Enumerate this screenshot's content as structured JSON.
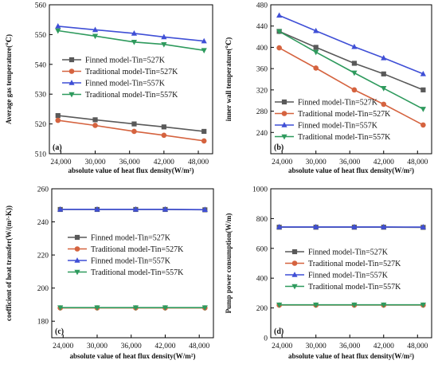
{
  "colors": {
    "finned_527": "#595959",
    "traditional_527": "#d5633f",
    "finned_557": "#3f4fd6",
    "traditional_557": "#2e9a5d",
    "axis": "#000000"
  },
  "chart_data": [
    {
      "type": "line",
      "panel_label": "(a)",
      "ylabel": "Average gas temperature(℃)",
      "xlabel": "absolute value of heat flux density(W/m²)",
      "x": [
        23500,
        30000,
        36800,
        42000,
        49000
      ],
      "xlim": [
        22000,
        50500
      ],
      "xticks": [
        24000,
        30000,
        36000,
        42000,
        48000
      ],
      "xtick_labels": [
        "24,000",
        "30,000",
        "36,000",
        "42,000",
        "48,000"
      ],
      "ylim": [
        510,
        560
      ],
      "yticks": [
        510,
        520,
        530,
        540,
        550,
        560
      ],
      "legend_position": "center-right",
      "series": [
        {
          "name": "Finned model-Tin=527K",
          "marker": "square",
          "color_key": "finned_527",
          "values": [
            522.8,
            521.4,
            520.0,
            519.0,
            517.5
          ]
        },
        {
          "name": "Traditional model-Tin=527K",
          "marker": "circle",
          "color_key": "traditional_527",
          "values": [
            521.2,
            519.5,
            517.5,
            516.2,
            514.3
          ]
        },
        {
          "name": "Finned model-Tin=557K",
          "marker": "triangle-up",
          "color_key": "finned_557",
          "values": [
            552.8,
            551.6,
            550.4,
            549.2,
            547.8
          ]
        },
        {
          "name": "Traditional model-Tin=557K",
          "marker": "triangle-down",
          "color_key": "traditional_557",
          "values": [
            551.3,
            549.5,
            547.5,
            546.7,
            544.7
          ]
        }
      ]
    },
    {
      "type": "line",
      "panel_label": "(b)",
      "ylabel": "inner wall temperature(℃)",
      "xlabel": "absolute value of heat flux density(W/m²)",
      "x": [
        23500,
        30000,
        36800,
        42000,
        49000
      ],
      "xlim": [
        22000,
        50500
      ],
      "xticks": [
        24000,
        30000,
        36000,
        42000,
        48000
      ],
      "xtick_labels": [
        "24,000",
        "30,000",
        "36,000",
        "42,000",
        "48,000"
      ],
      "ylim": [
        200,
        480
      ],
      "yticks": [
        240,
        280,
        320,
        360,
        400,
        440,
        480
      ],
      "legend_position": "bottom-left",
      "series": [
        {
          "name": "Finned model-Tin=527K",
          "marker": "square",
          "color_key": "finned_527",
          "values": [
            430,
            400,
            370,
            350,
            320
          ]
        },
        {
          "name": "Traditional model-Tin=527K",
          "marker": "circle",
          "color_key": "traditional_527",
          "values": [
            399,
            361,
            320,
            293,
            254
          ]
        },
        {
          "name": "Finned model-Tin=557K",
          "marker": "triangle-up",
          "color_key": "finned_557",
          "values": [
            460,
            431,
            401,
            380,
            350
          ]
        },
        {
          "name": "Traditional model-Tin=557K",
          "marker": "triangle-down",
          "color_key": "traditional_557",
          "values": [
            430,
            391,
            352,
            323,
            284
          ]
        }
      ]
    },
    {
      "type": "line",
      "panel_label": "(c)",
      "ylabel": "coefficient of heat transfer(W/(m²·K))",
      "xlabel": "absolute value of heat flux density(W/m²)",
      "x": [
        23500,
        30000,
        36800,
        42000,
        49000
      ],
      "xlim": [
        22000,
        50500
      ],
      "xticks": [
        24000,
        30000,
        36000,
        42000,
        48000
      ],
      "xtick_labels": [
        "24,000",
        "30,000",
        "36,000",
        "42,000",
        "48,000"
      ],
      "ylim": [
        170,
        260
      ],
      "yticks": [
        180,
        200,
        220,
        240,
        260
      ],
      "legend_position": "center-right",
      "series": [
        {
          "name": "Finned model-Tin=527K",
          "marker": "square",
          "color_key": "finned_527",
          "values": [
            247.5,
            247.5,
            247.5,
            247.5,
            247.3
          ]
        },
        {
          "name": "Traditional model-Tin=527K",
          "marker": "circle",
          "color_key": "traditional_527",
          "values": [
            188.0,
            188.0,
            188.0,
            188.0,
            188.0
          ]
        },
        {
          "name": "Finned model-Tin=557K",
          "marker": "triangle-up",
          "color_key": "finned_557",
          "values": [
            247.6,
            247.6,
            247.6,
            247.6,
            247.4
          ]
        },
        {
          "name": "Traditional model-Tin=557K",
          "marker": "triangle-down",
          "color_key": "traditional_557",
          "values": [
            188.2,
            188.2,
            188.2,
            188.2,
            188.2
          ]
        }
      ]
    },
    {
      "type": "line",
      "panel_label": "(d)",
      "ylabel": "Pump power consumption(W/m)",
      "xlabel": "absolute value of heat flux density(W/m²)",
      "x": [
        23500,
        30000,
        36800,
        42000,
        49000
      ],
      "xlim": [
        22000,
        50500
      ],
      "xticks": [
        24000,
        30000,
        36000,
        42000,
        48000
      ],
      "xtick_labels": [
        "24,000",
        "30,000",
        "36,000",
        "42,000",
        "48,000"
      ],
      "ylim": [
        0,
        1000
      ],
      "yticks": [
        0,
        200,
        400,
        600,
        800,
        1000
      ],
      "legend_position": "center-right",
      "series": [
        {
          "name": "Finned model-Tin=527K",
          "marker": "square",
          "color_key": "finned_527",
          "values": [
            742,
            742,
            742,
            742,
            741
          ]
        },
        {
          "name": "Traditional model-Tin=527K",
          "marker": "circle",
          "color_key": "traditional_527",
          "values": [
            219,
            219,
            219,
            219,
            219
          ]
        },
        {
          "name": "Finned model-Tin=557K",
          "marker": "triangle-up",
          "color_key": "finned_557",
          "values": [
            744,
            744,
            744,
            744,
            743
          ]
        },
        {
          "name": "Traditional model-Tin=557K",
          "marker": "triangle-down",
          "color_key": "traditional_557",
          "values": [
            221,
            221,
            221,
            221,
            221
          ]
        }
      ]
    }
  ]
}
